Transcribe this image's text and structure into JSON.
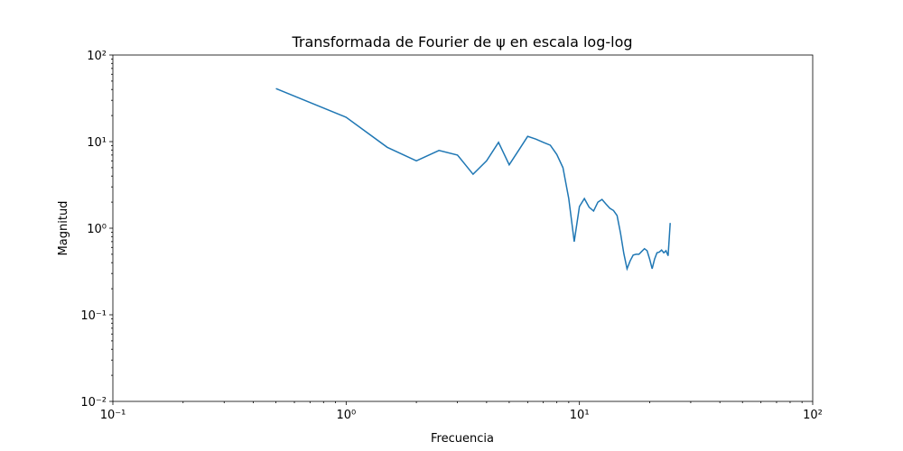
{
  "chart_data": {
    "type": "line",
    "title": "Transformada de Fourier de ψ en escala log-log",
    "x_label": "Frecuencia",
    "y_label": "Magnitud",
    "x_scale": "log",
    "y_scale": "log",
    "grid": false,
    "xlim": [
      0.1,
      100
    ],
    "ylim": [
      0.01,
      100
    ],
    "xticks": [
      {
        "value": 0.1,
        "label": "10⁻¹"
      },
      {
        "value": 1,
        "label": "10⁰"
      },
      {
        "value": 10,
        "label": "10¹"
      },
      {
        "value": 100,
        "label": "10²"
      }
    ],
    "yticks": [
      {
        "value": 0.01,
        "label": "10⁻²"
      },
      {
        "value": 0.1,
        "label": "10⁻¹"
      },
      {
        "value": 1,
        "label": "10⁰"
      },
      {
        "value": 10,
        "label": "10¹"
      },
      {
        "value": 100,
        "label": "10²"
      }
    ],
    "x": [
      0.5,
      1,
      1.5,
      2,
      2.5,
      3,
      3.5,
      4,
      4.5,
      5,
      5.5,
      6,
      6.5,
      7,
      7.5,
      8,
      8.5,
      9,
      9.5,
      10,
      10.5,
      11,
      11.5,
      12,
      12.5,
      13,
      13.5,
      14,
      14.5,
      15,
      15.5,
      16,
      16.5,
      17,
      17.5,
      18,
      18.5,
      19,
      19.5,
      20,
      20.5,
      21,
      21.5,
      22,
      22.5,
      23,
      23.5,
      24,
      24.5
    ],
    "series": [
      {
        "name": "ψ",
        "color": "#1f77b4",
        "values": [
          41,
          19.1,
          8.6,
          6.0,
          7.9,
          7.0,
          4.2,
          6.0,
          9.8,
          5.4,
          8.0,
          11.5,
          10.7,
          9.8,
          9.1,
          7.1,
          5.0,
          2.2,
          0.7,
          1.78,
          2.2,
          1.75,
          1.58,
          2.0,
          2.15,
          1.9,
          1.7,
          1.6,
          1.4,
          0.88,
          0.51,
          0.34,
          0.42,
          0.49,
          0.5,
          0.5,
          0.54,
          0.58,
          0.55,
          0.44,
          0.34,
          0.44,
          0.52,
          0.53,
          0.56,
          0.52,
          0.55,
          0.48,
          1.15
        ]
      }
    ]
  }
}
